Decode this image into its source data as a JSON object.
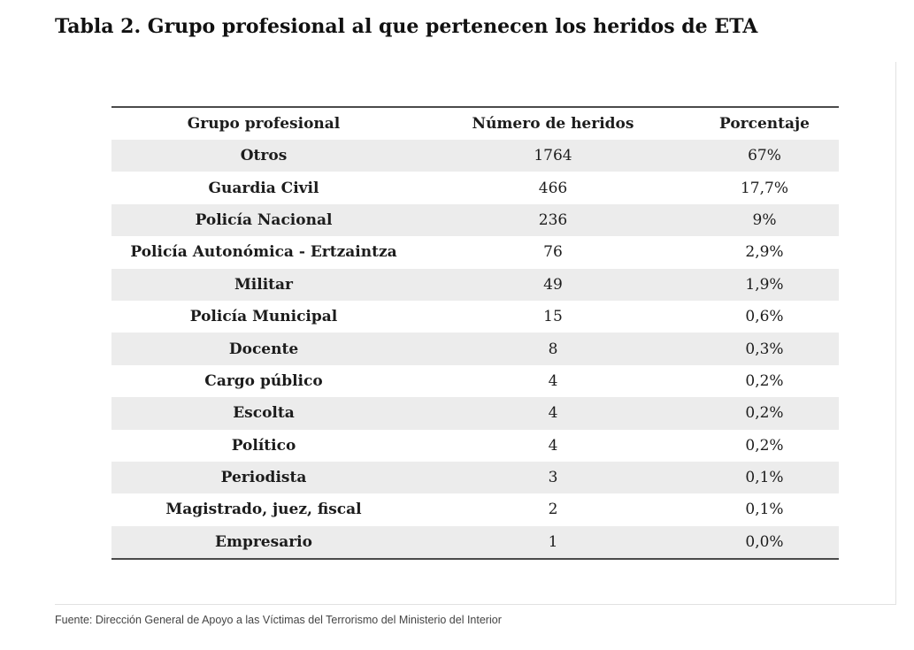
{
  "title": "Tabla 2. Grupo profesional al que pertenecen los heridos de ETA",
  "table": {
    "headers": {
      "group": "Grupo profesional",
      "count": "Número de heridos",
      "percent": "Porcentaje"
    },
    "rows": [
      {
        "group": "Otros",
        "count": "1764",
        "percent": "67%"
      },
      {
        "group": "Guardia Civil",
        "count": "466",
        "percent": "17,7%"
      },
      {
        "group": "Policía Nacional",
        "count": "236",
        "percent": "9%"
      },
      {
        "group": "Policía Autonómica - Ertzaintza",
        "count": "76",
        "percent": "2,9%"
      },
      {
        "group": "Militar",
        "count": "49",
        "percent": "1,9%"
      },
      {
        "group": "Policía Municipal",
        "count": "15",
        "percent": "0,6%"
      },
      {
        "group": "Docente",
        "count": "8",
        "percent": "0,3%"
      },
      {
        "group": "Cargo público",
        "count": "4",
        "percent": "0,2%"
      },
      {
        "group": "Escolta",
        "count": "4",
        "percent": "0,2%"
      },
      {
        "group": "Político",
        "count": "4",
        "percent": "0,2%"
      },
      {
        "group": "Periodista",
        "count": "3",
        "percent": "0,1%"
      },
      {
        "group": "Magistrado, juez, fiscal",
        "count": "2",
        "percent": "0,1%"
      },
      {
        "group": "Empresario",
        "count": "1",
        "percent": "0,0%"
      }
    ]
  },
  "source": "Fuente: Dirección General de Apoyo a las Víctimas del Terrorismo del Ministerio del Interior",
  "colors": {
    "stripe": "#ececec",
    "rule": "#4a4a4a",
    "text": "#1c1c1c"
  }
}
